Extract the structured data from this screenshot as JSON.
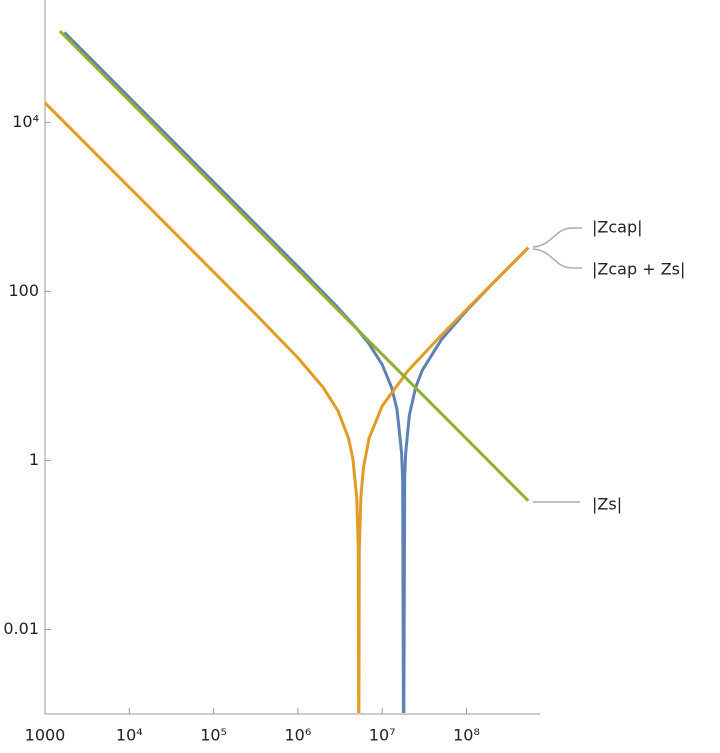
{
  "chart_data": {
    "type": "line",
    "xscale": "log",
    "yscale": "log",
    "xlim": [
      1000,
      745000000
    ],
    "ylim": [
      0.001,
      280000
    ],
    "xticks": [
      1000,
      {
        "value": 10000,
        "label": "10⁴"
      },
      {
        "value": 100000,
        "label": "10⁵"
      },
      {
        "value": 1000000,
        "label": "10⁶"
      },
      {
        "value": 10000000,
        "label": "10⁷"
      },
      {
        "value": 100000000,
        "label": "10⁸"
      }
    ],
    "yticks": [
      0.01,
      1,
      100,
      {
        "value": 10000,
        "label": "10⁴"
      }
    ],
    "series": [
      {
        "name": "|Zcap + Zs|",
        "color": "#5e81b5",
        "x": [
          1700,
          10000,
          100000,
          1000000,
          3000000,
          5000000,
          7000000,
          10000000,
          13000000,
          15000000,
          17000000,
          17500000,
          17971000,
          18500000,
          19000000,
          21000000,
          25000000,
          30000000,
          50000000,
          100000000,
          200000000,
          540000000
        ],
        "values": [
          115900,
          19700,
          1970,
          196.4,
          63.84,
          36.35,
          23.87,
          13.6,
          7.22,
          3.98,
          1.218,
          0.582,
          0.0002,
          0.636,
          1.222,
          3.429,
          7.37,
          11.73,
          26.56,
          59.03,
          121.0,
          329.0
        ]
      },
      {
        "name": "|Zcap|",
        "color": "#e19c24",
        "x": [
          1000,
          10000,
          30000,
          100000,
          300000,
          1000000,
          2000000,
          3000000,
          4000000,
          4500000,
          5000000,
          5200000,
          5279000,
          5350000,
          5600000,
          6000000,
          7000000,
          10000000,
          20000000,
          50000000,
          100000000,
          200000000,
          540000000
        ],
        "values": [
          17000,
          1700,
          566.7,
          169.9,
          56.5,
          16.39,
          7.28,
          3.837,
          1.81,
          1.033,
          0.35,
          0.097,
          0.0003,
          0.086,
          0.38,
          0.827,
          1.84,
          4.4,
          11.35,
          30.16,
          60.83,
          122,
          329.4
        ]
      },
      {
        "name": "|Zs|",
        "color": "#8fb032",
        "x": [
          1500,
          10000,
          1000000,
          100000000,
          540000000
        ],
        "values": [
          120000,
          18000,
          180,
          1.8,
          0.333
        ]
      }
    ]
  }
}
